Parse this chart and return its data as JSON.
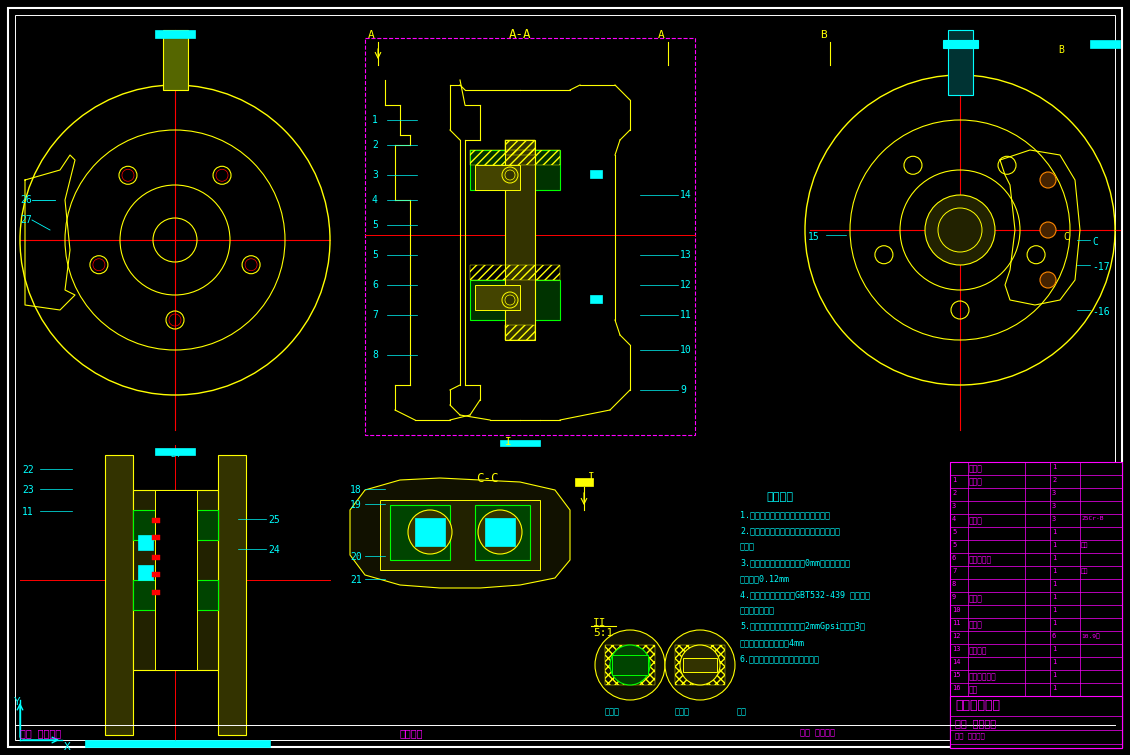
{
  "background_color": "#000000",
  "border_color": "#ffffff",
  "drawing_title": "钳盘式制动器",
  "fig_width": 11.3,
  "fig_height": 7.55,
  "dpi": 100,
  "cyan": "#00ffff",
  "yellow": "#ffff00",
  "magenta": "#ff00ff",
  "green": "#00ff00",
  "red": "#ff0000",
  "white": "#ffffff",
  "section_aa_title": "A-A",
  "section_cc_title": "C-C",
  "tech_requirements_title": "技术要求",
  "tech_requirements": [
    "1.装配过程中不制度合零件各工量表面",
    "2.摩擦式制动盘上不允许有油迹；刃袋及某",
    "它异物",
    "3.左制动盘最大直径走向内0mm，装配页面跳",
    "度不大于0.12mm",
    "4.其余技术条件应符合GBT532-439 《磁车制",
    "动器性能要求》",
    "5.车制动器施加内压力轴至2mmGpsi，保压3分",
    "钟，磁内压力不能超过4mm",
    "6.工作介质：充填动力液压制动液"
  ],
  "scale_ii": "II",
  "scale_value": "5:1",
  "detail_label_left": "剖面图",
  "detail_label_right": "放大图"
}
